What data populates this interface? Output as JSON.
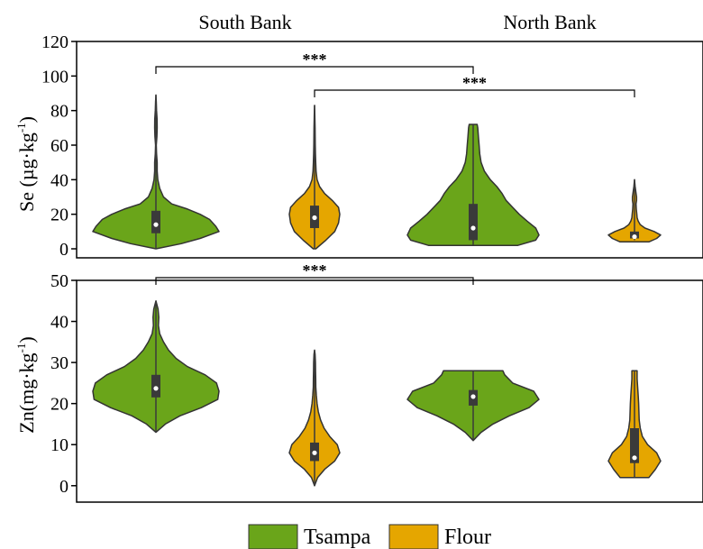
{
  "chart_data": [
    {
      "type": "violin",
      "ylabel": "Se (µg·kg",
      "ylabel_sup": "-1",
      "ylabel_close": ")",
      "ylim": [
        0,
        120
      ],
      "yticks": [
        "0",
        "20",
        "40",
        "60",
        "80",
        "100",
        "120"
      ],
      "groups": [
        "South Bank",
        "North Bank"
      ],
      "violins": [
        {
          "series": "Tsampa",
          "group": "South Bank",
          "min": 0,
          "max": 89,
          "q1": 9,
          "median": 14,
          "q3": 22,
          "density": [
            [
              0,
              0
            ],
            [
              3,
              0.4
            ],
            [
              6,
              0.7
            ],
            [
              10,
              1.0
            ],
            [
              13,
              0.95
            ],
            [
              17,
              0.85
            ],
            [
              20,
              0.7
            ],
            [
              23,
              0.5
            ],
            [
              26,
              0.25
            ],
            [
              30,
              0.12
            ],
            [
              35,
              0.06
            ],
            [
              40,
              0.03
            ],
            [
              45,
              0.02
            ],
            [
              50,
              0.02
            ],
            [
              55,
              0.01
            ],
            [
              60,
              0.006
            ],
            [
              65,
              0.015
            ],
            [
              70,
              0.02
            ],
            [
              75,
              0.018
            ],
            [
              80,
              0.01
            ],
            [
              85,
              0.006
            ],
            [
              89,
              0
            ]
          ]
        },
        {
          "series": "Flour",
          "group": "South Bank",
          "min": 0,
          "max": 83,
          "q1": 12,
          "median": 18,
          "q3": 25,
          "density": [
            [
              0,
              0.05
            ],
            [
              5,
              0.45
            ],
            [
              10,
              0.8
            ],
            [
              15,
              0.95
            ],
            [
              20,
              1.0
            ],
            [
              24,
              0.95
            ],
            [
              28,
              0.7
            ],
            [
              32,
              0.4
            ],
            [
              36,
              0.2
            ],
            [
              40,
              0.1
            ],
            [
              45,
              0.06
            ],
            [
              50,
              0.045
            ],
            [
              55,
              0.035
            ],
            [
              60,
              0.03
            ],
            [
              65,
              0.025
            ],
            [
              70,
              0.02
            ],
            [
              75,
              0.015
            ],
            [
              80,
              0.008
            ],
            [
              83,
              0
            ]
          ]
        },
        {
          "series": "Tsampa",
          "group": "North Bank",
          "min": 2,
          "max": 72,
          "q1": 5,
          "median": 12,
          "q3": 26,
          "density": [
            [
              2,
              0.68
            ],
            [
              5,
              0.95
            ],
            [
              8,
              1.0
            ],
            [
              12,
              0.95
            ],
            [
              16,
              0.82
            ],
            [
              20,
              0.7
            ],
            [
              24,
              0.6
            ],
            [
              28,
              0.5
            ],
            [
              32,
              0.44
            ],
            [
              36,
              0.36
            ],
            [
              40,
              0.26
            ],
            [
              45,
              0.17
            ],
            [
              50,
              0.12
            ],
            [
              55,
              0.1
            ],
            [
              60,
              0.09
            ],
            [
              65,
              0.08
            ],
            [
              70,
              0.07
            ],
            [
              72,
              0.06
            ]
          ]
        },
        {
          "series": "Flour",
          "group": "North Bank",
          "min": 5,
          "max": 40,
          "q1": 6,
          "median": 7,
          "q3": 10,
          "density": [
            [
              4,
              0.55
            ],
            [
              6,
              0.85
            ],
            [
              8,
              1.0
            ],
            [
              10,
              0.75
            ],
            [
              12,
              0.4
            ],
            [
              14,
              0.22
            ],
            [
              16,
              0.14
            ],
            [
              18,
              0.1
            ],
            [
              20,
              0.09
            ],
            [
              23,
              0.07
            ],
            [
              26,
              0.06
            ],
            [
              28,
              0.08
            ],
            [
              30,
              0.08
            ],
            [
              33,
              0.05
            ],
            [
              36,
              0.025
            ],
            [
              40,
              0
            ]
          ]
        }
      ],
      "significance": [
        {
          "label": "***",
          "from": 0,
          "to": 2
        },
        {
          "label": "***",
          "from": 1,
          "to": 3
        }
      ]
    },
    {
      "type": "violin",
      "ylabel": "Zn(mg·kg",
      "ylabel_sup": "-1",
      "ylabel_close": ")",
      "ylim": [
        -4,
        50
      ],
      "yticks": [
        "0",
        "10",
        "20",
        "30",
        "40",
        "50"
      ],
      "violins": [
        {
          "series": "Tsampa",
          "group": "South Bank",
          "min": 13,
          "max": 45,
          "q1": 21.5,
          "median": 23.7,
          "q3": 27,
          "density": [
            [
              13,
              0
            ],
            [
              15,
              0.15
            ],
            [
              17,
              0.38
            ],
            [
              19,
              0.72
            ],
            [
              21,
              0.98
            ],
            [
              23,
              1.0
            ],
            [
              25,
              0.96
            ],
            [
              27,
              0.78
            ],
            [
              29,
              0.5
            ],
            [
              31,
              0.32
            ],
            [
              33,
              0.2
            ],
            [
              35,
              0.12
            ],
            [
              37,
              0.06
            ],
            [
              39,
              0.04
            ],
            [
              41,
              0.045
            ],
            [
              43,
              0.035
            ],
            [
              45,
              0
            ]
          ]
        },
        {
          "series": "Flour",
          "group": "South Bank",
          "min": 0,
          "max": 33,
          "q1": 6,
          "median": 8,
          "q3": 10.5,
          "density": [
            [
              0,
              0
            ],
            [
              2,
              0.12
            ],
            [
              4,
              0.4
            ],
            [
              6,
              0.8
            ],
            [
              8,
              1.0
            ],
            [
              10,
              0.9
            ],
            [
              12,
              0.6
            ],
            [
              14,
              0.38
            ],
            [
              16,
              0.24
            ],
            [
              18,
              0.15
            ],
            [
              20,
              0.1
            ],
            [
              22,
              0.07
            ],
            [
              24,
              0.05
            ],
            [
              26,
              0.045
            ],
            [
              28,
              0.04
            ],
            [
              30,
              0.035
            ],
            [
              32,
              0.02
            ],
            [
              33,
              0
            ]
          ]
        },
        {
          "series": "Tsampa",
          "group": "North Bank",
          "min": 11,
          "max": 28,
          "q1": 19.5,
          "median": 21.7,
          "q3": 23.3,
          "density": [
            [
              11,
              0
            ],
            [
              13,
              0.12
            ],
            [
              15,
              0.3
            ],
            [
              17,
              0.55
            ],
            [
              19,
              0.85
            ],
            [
              21,
              1.0
            ],
            [
              23,
              0.92
            ],
            [
              25,
              0.6
            ],
            [
              27,
              0.48
            ],
            [
              28,
              0.45
            ]
          ]
        },
        {
          "series": "Flour",
          "group": "North Bank",
          "min": 2,
          "max": 28,
          "q1": 5.5,
          "median": 6.8,
          "q3": 14,
          "density": [
            [
              2,
              0.55
            ],
            [
              4,
              0.8
            ],
            [
              6,
              1.0
            ],
            [
              8,
              0.85
            ],
            [
              10,
              0.5
            ],
            [
              12,
              0.3
            ],
            [
              14,
              0.22
            ],
            [
              16,
              0.18
            ],
            [
              18,
              0.17
            ],
            [
              20,
              0.16
            ],
            [
              22,
              0.14
            ],
            [
              24,
              0.12
            ],
            [
              26,
              0.1
            ],
            [
              28,
              0.1
            ]
          ]
        }
      ],
      "significance": [
        {
          "label": "***",
          "from": 0,
          "to": 2
        }
      ]
    }
  ],
  "legend": {
    "placement": "bottom-center",
    "items": [
      {
        "label": "Tsampa",
        "color": "#6aa51a"
      },
      {
        "label": "Flour",
        "color": "#e5a600"
      }
    ]
  },
  "colors": {
    "Tsampa": "#6aa51a",
    "Flour": "#e5a600",
    "outline": "#333333",
    "box": "#3a3a3a"
  }
}
